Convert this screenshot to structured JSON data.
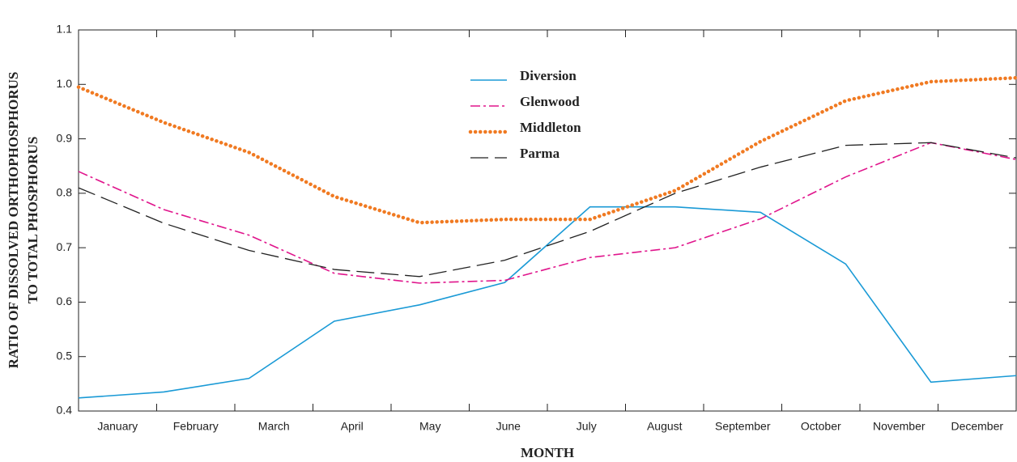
{
  "chart_data": {
    "type": "line",
    "xlabel": "MONTH",
    "ylabel": [
      "RATIO OF DISSOLVED ORTHOPHOSPHORUS",
      "TO TOTAL PHOSPHORUS"
    ],
    "categories": [
      "January",
      "February",
      "March",
      "April",
      "May",
      "June",
      "July",
      "August",
      "September",
      "October",
      "November",
      "December"
    ],
    "series": [
      {
        "name": "Diversion",
        "color": "#1a9ad6",
        "dash": "solid",
        "values": [
          0.424,
          0.435,
          0.46,
          0.565,
          0.595,
          0.636,
          0.775,
          0.775,
          0.765,
          0.67,
          0.453,
          0.465
        ]
      },
      {
        "name": "Glenwood",
        "color": "#e0158c",
        "dash": "dashdot",
        "values": [
          0.84,
          0.77,
          0.723,
          0.653,
          0.635,
          0.64,
          0.682,
          0.7,
          0.753,
          0.83,
          0.893,
          0.862
        ]
      },
      {
        "name": "Middleton",
        "color": "#f07a22",
        "dash": "dotted",
        "values": [
          0.995,
          0.93,
          0.875,
          0.794,
          0.746,
          0.752,
          0.752,
          0.805,
          0.895,
          0.97,
          1.005,
          1.012
        ]
      },
      {
        "name": "Parma",
        "color": "#222222",
        "dash": "dashed",
        "values": [
          0.81,
          0.745,
          0.695,
          0.66,
          0.647,
          0.677,
          0.73,
          0.8,
          0.848,
          0.888,
          0.893,
          0.865
        ]
      }
    ],
    "ylim": [
      0.4,
      1.1
    ],
    "yticks": [
      0.4,
      0.5,
      0.6,
      0.7,
      0.8,
      0.9,
      {
        "value": 1,
        "label": "1.0"
      },
      1.1
    ],
    "grid": false
  }
}
